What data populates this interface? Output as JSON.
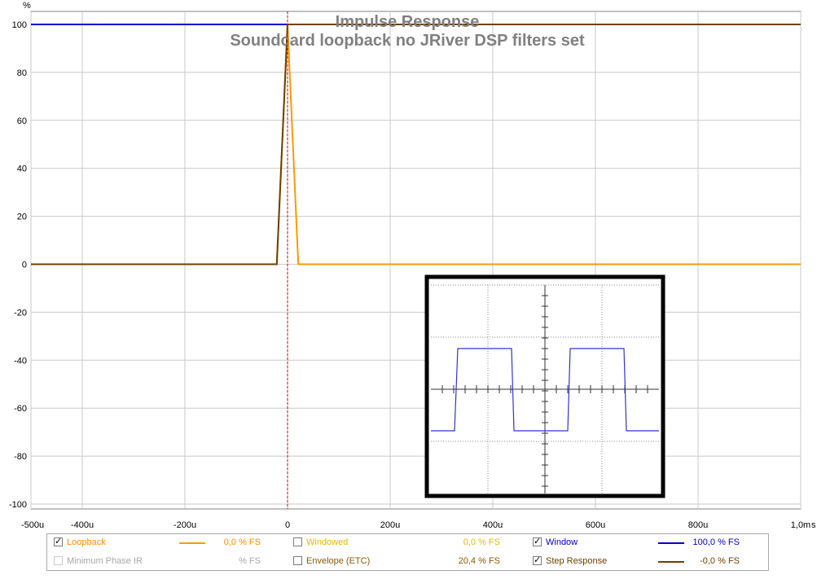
{
  "chart_data": {
    "type": "line",
    "title": "Impulse Response",
    "subtitle": "Soundcard loopback no JRiver DSP filters set",
    "ylabel": "%",
    "xlabel": "s",
    "xlim": [
      -500,
      1000
    ],
    "ylim": [
      -100,
      100
    ],
    "x_unit": "u",
    "yticks": [
      100,
      80,
      60,
      40,
      20,
      0,
      -20,
      -40,
      -60,
      -80,
      -100
    ],
    "yticks_labels": [
      "100",
      "80",
      "60",
      "40",
      "20",
      "0",
      "-20",
      "-40",
      "-60",
      "-80",
      "-100"
    ],
    "xticks": [
      -500,
      -400,
      -200,
      0,
      200,
      400,
      600,
      800,
      1000
    ],
    "xticks_labels": [
      "-500u",
      "-400u",
      "-200u",
      "0",
      "200u",
      "400u",
      "600u",
      "800u",
      "1,0m"
    ],
    "grid": true,
    "cursor_x": 0,
    "legend_placement": "bottom",
    "series": [
      {
        "name": "Window",
        "color": "#0000cc",
        "x": [
          -500,
          0,
          1000
        ],
        "y": [
          100,
          100,
          100
        ]
      },
      {
        "name": "Loopback",
        "color": "#ff9900",
        "x": [
          -500,
          -21,
          0,
          21,
          1000
        ],
        "y": [
          0,
          0,
          100,
          0,
          0
        ]
      },
      {
        "name": "Step Response",
        "color": "#6b4200",
        "x": [
          -500,
          -21,
          0,
          1000
        ],
        "y": [
          0,
          0,
          100,
          100
        ]
      }
    ]
  },
  "legend": {
    "rows": [
      [
        {
          "name": "Loopback",
          "checked": true,
          "enabled": true,
          "color": "#ff9900",
          "label_color": "#ff8c00",
          "value": "0,0 % FS",
          "swatch": true
        },
        {
          "name": "Windowed",
          "checked": false,
          "enabled": true,
          "color": "#ffcc00",
          "label_color": "#e6b800",
          "value": "0,0 % FS",
          "swatch": false
        },
        {
          "name": "Window",
          "checked": true,
          "enabled": true,
          "color": "#0000cc",
          "label_color": "#0000cc",
          "value": "100,0 % FS",
          "swatch": true
        }
      ],
      [
        {
          "name": "Minimum Phase IR",
          "checked": false,
          "enabled": false,
          "color": "#a0a0a0",
          "label_color": "#a8a8a8",
          "value": "% FS",
          "swatch": false
        },
        {
          "name": "Envelope (ETC)",
          "checked": false,
          "enabled": true,
          "color": "#8b5a00",
          "label_color": "#8b5a00",
          "value": "20,4 % FS",
          "swatch": false
        },
        {
          "name": "Step Response",
          "checked": true,
          "enabled": true,
          "color": "#6b4200",
          "label_color": "#6b4200",
          "value": "-0,0 % FS",
          "swatch": true
        }
      ]
    ]
  },
  "inset": {
    "description_icon": "oscilloscope-square-wave-icon",
    "trace_color": "#3333cc"
  }
}
